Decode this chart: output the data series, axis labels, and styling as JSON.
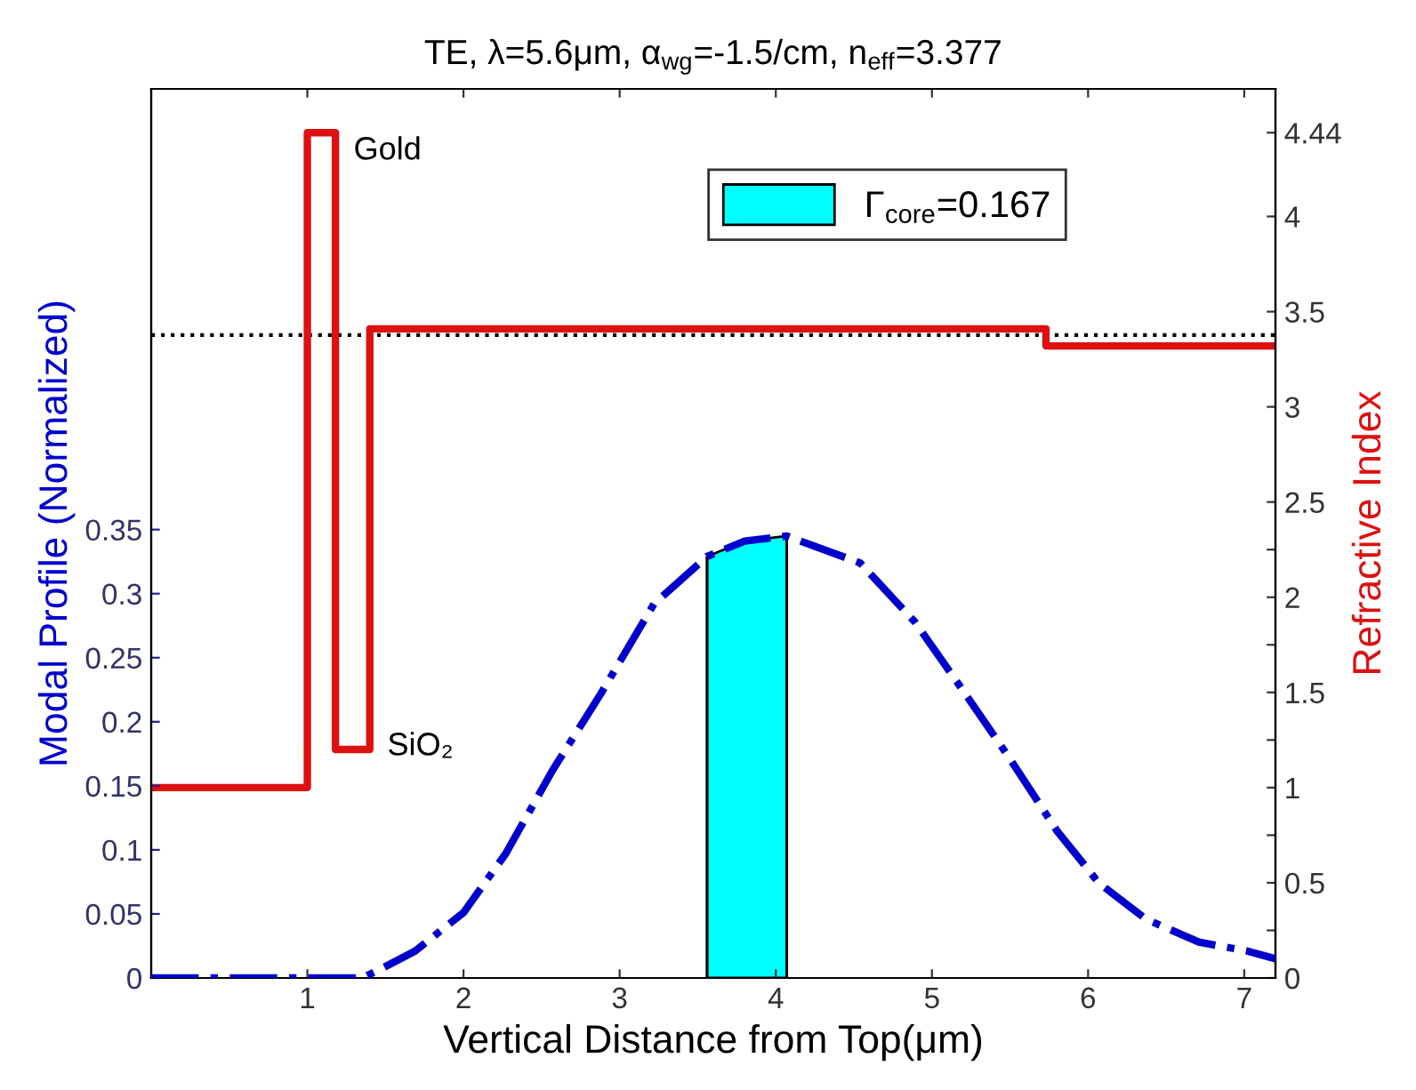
{
  "chart_data": {
    "type": "line",
    "title": "TE, λ=5.6μm, α$_{wg}$=-1.5/cm, n$_{eff}$=3.377",
    "xlabel": "Vertical Distance from Top(μm)",
    "ylabel": "Modal Profile (Normalized)",
    "y2label": "Refractive Index",
    "xlim": [
      0,
      7.2
    ],
    "xticks": [
      1,
      2,
      3,
      4,
      5,
      6,
      7
    ],
    "ylim": [
      0,
      0.694
    ],
    "yticks": [
      0,
      0.05,
      0.1,
      0.15,
      0.2,
      0.25,
      0.3,
      0.35
    ],
    "y2lim": [
      0,
      4.67
    ],
    "y2ticks": [
      0,
      {
        "value": 0.25,
        "label": null
      },
      0.5,
      {
        "value": 0.75,
        "label": null
      },
      1,
      {
        "value": 1.25,
        "label": null
      },
      1.5,
      {
        "value": 1.75,
        "label": null
      },
      2,
      {
        "value": 2.25,
        "label": null
      },
      2.5,
      3,
      3.5,
      4,
      4.44
    ],
    "series": [
      {
        "type": "area",
        "name": "Γ$_{core}$=0.167",
        "color": "#00ffff",
        "x": [
          3.56,
          3.8,
          4.07
        ],
        "values": [
          0.329,
          0.341,
          0.345
        ]
      },
      {
        "color": "#0000cc",
        "line_style": "dashdot",
        "x": [
          0,
          1.35,
          1.47,
          1.69,
          2.0,
          2.27,
          2.57,
          2.88,
          3.22,
          3.56,
          3.8,
          4.07,
          4.54,
          4.89,
          5.19,
          5.5,
          5.8,
          6.07,
          6.37,
          6.71,
          7.02,
          7.2
        ],
        "values": [
          0,
          0,
          0.007,
          0.021,
          0.051,
          0.097,
          0.162,
          0.222,
          0.292,
          0.329,
          0.341,
          0.345,
          0.324,
          0.278,
          0.226,
          0.171,
          0.115,
          0.074,
          0.046,
          0.028,
          0.021,
          0.015
        ]
      },
      {
        "type": "step",
        "axis": "y2",
        "color": "#dd1111",
        "x": [
          0,
          1,
          1.18,
          1.4,
          5.73,
          7.2
        ],
        "values": [
          1,
          4.44,
          1.2,
          3.41,
          3.32,
          3.32
        ]
      }
    ],
    "ref_lines": [
      {
        "axis": "y2",
        "value": 3.377,
        "color": "#000000",
        "line_style": "dotted"
      }
    ],
    "annotations": [
      "Gold",
      "SiO₂"
    ],
    "legend": "top right",
    "grid": false
  }
}
